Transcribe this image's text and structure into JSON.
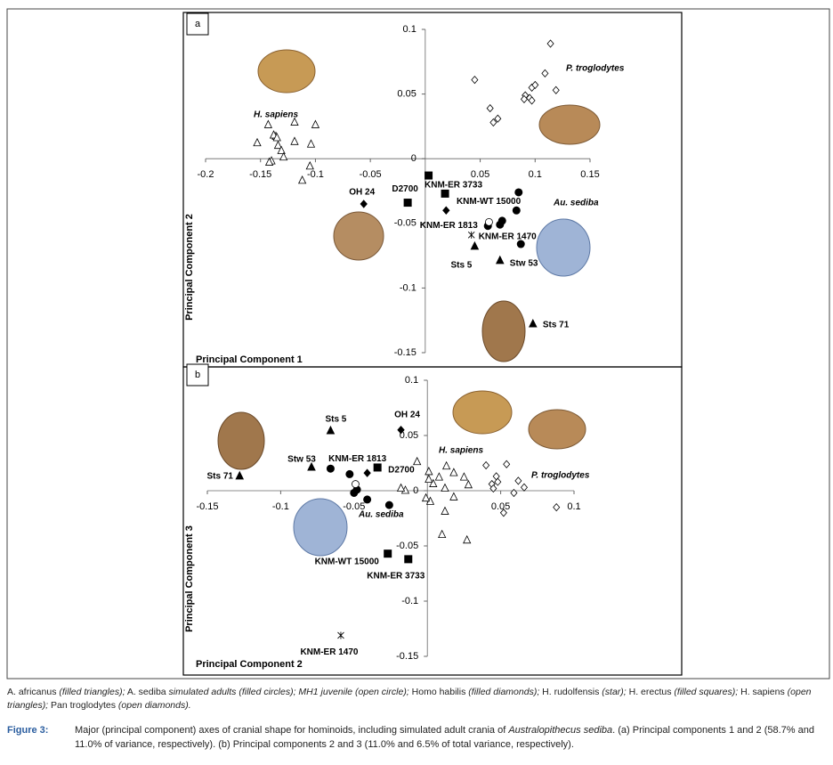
{
  "chart_data": [
    {
      "type": "scatter",
      "panel": "a",
      "xlabel": "Principal Component 1",
      "ylabel": "Principal Component 2",
      "xlim": [
        -0.2,
        0.15
      ],
      "ylim": [
        -0.15,
        0.1
      ],
      "xticks": [
        -0.2,
        -0.15,
        -0.1,
        -0.05,
        0.05,
        0.1,
        0.15
      ],
      "yticks": [
        -0.15,
        -0.1,
        -0.05,
        0,
        0.05,
        0.1
      ],
      "annotations": [
        "H. sapiens",
        "P. troglodytes",
        "Au. sediba"
      ],
      "series": [
        {
          "marker": "filled-triangle",
          "color": "#000000",
          "x": [
            0.045,
            0.068,
            0.098
          ],
          "values": [
            -0.068,
            -0.079,
            -0.128
          ],
          "labels": [
            "Sts 5",
            "Stw 53",
            "Sts 71"
          ]
        },
        {
          "marker": "filled-circle",
          "color": "#000000",
          "x": [
            0.085,
            0.083,
            0.07,
            0.068,
            0.087,
            0.057
          ],
          "values": [
            -0.026,
            -0.04,
            -0.048,
            -0.051,
            -0.066,
            -0.052
          ]
        },
        {
          "marker": "open-circle",
          "color": "#000000",
          "x": [
            0.058
          ],
          "values": [
            -0.049
          ]
        },
        {
          "marker": "filled-diamond",
          "color": "#000000",
          "x": [
            -0.056,
            0.019
          ],
          "values": [
            -0.035,
            -0.04
          ],
          "labels": [
            "OH 24",
            "KNM-ER 1813"
          ]
        },
        {
          "marker": "star",
          "color": "#000000",
          "x": [
            0.042
          ],
          "values": [
            -0.059
          ],
          "labels": [
            "KNM-ER 1470"
          ]
        },
        {
          "marker": "filled-square",
          "color": "#000000",
          "x": [
            -0.016,
            0.003,
            0.018
          ],
          "values": [
            -0.034,
            -0.013,
            -0.027
          ],
          "labels": [
            "D2700",
            "KNM-ER 3733",
            "KNM-WT 15000"
          ]
        },
        {
          "marker": "open-triangle",
          "color": "#000000",
          "x": [
            -0.153,
            -0.143,
            -0.136,
            -0.119,
            -0.1,
            -0.104,
            -0.119,
            -0.138,
            -0.135,
            -0.134,
            -0.131,
            -0.129,
            -0.14,
            -0.142,
            -0.105,
            -0.112
          ],
          "values": [
            0.012,
            0.026,
            0.017,
            0.028,
            0.026,
            0.011,
            0.013,
            0.018,
            0.016,
            0.01,
            0.006,
            0.001,
            -0.002,
            -0.003,
            -0.006,
            -0.017
          ]
        },
        {
          "marker": "open-diamond",
          "color": "#000000",
          "x": [
            0.045,
            0.114,
            0.109,
            0.119,
            0.059,
            0.062,
            0.066,
            0.091,
            0.095,
            0.097,
            0.1,
            0.097,
            0.09
          ],
          "values": [
            0.061,
            0.089,
            0.066,
            0.053,
            0.039,
            0.028,
            0.031,
            0.049,
            0.047,
            0.055,
            0.057,
            0.045,
            0.046
          ]
        }
      ]
    },
    {
      "type": "scatter",
      "panel": "b",
      "xlabel": "Principal Component 2",
      "ylabel": "Principal Component 3",
      "xlim": [
        -0.15,
        0.1
      ],
      "ylim": [
        -0.15,
        0.1
      ],
      "xticks": [
        -0.15,
        -0.1,
        -0.05,
        0.05,
        0.1
      ],
      "yticks": [
        -0.15,
        -0.1,
        -0.05,
        0,
        0.05,
        0.1
      ],
      "annotations": [
        "H. sapiens",
        "P. troglodytes",
        "Au. sediba"
      ],
      "series": [
        {
          "marker": "filled-triangle",
          "color": "#000000",
          "x": [
            -0.066,
            -0.079,
            -0.128
          ],
          "values": [
            0.054,
            0.021,
            0.013
          ],
          "labels": [
            "Sts 5",
            "Stw 53",
            "Sts 71"
          ]
        },
        {
          "marker": "filled-circle",
          "color": "#000000",
          "x": [
            -0.066,
            -0.053,
            -0.048,
            -0.05,
            -0.041,
            -0.026
          ],
          "values": [
            0.02,
            0.015,
            0.001,
            -0.002,
            -0.008,
            -0.013
          ]
        },
        {
          "marker": "open-circle",
          "color": "#000000",
          "x": [
            -0.049
          ],
          "values": [
            0.006
          ]
        },
        {
          "marker": "filled-diamond",
          "color": "#000000",
          "x": [
            -0.018,
            -0.041
          ],
          "values": [
            0.055,
            0.016
          ],
          "labels": [
            "OH 24",
            "KNM-ER 1813"
          ]
        },
        {
          "marker": "star",
          "color": "#000000",
          "x": [
            -0.059
          ],
          "values": [
            -0.131
          ],
          "labels": [
            "KNM-ER 1470"
          ]
        },
        {
          "marker": "filled-square",
          "color": "#000000",
          "x": [
            -0.034,
            -0.027,
            -0.013
          ],
          "values": [
            0.021,
            -0.057,
            -0.062
          ],
          "labels": [
            "D2700",
            "KNM-WT 15000",
            "KNM-ER 3733"
          ]
        },
        {
          "marker": "open-triangle",
          "color": "#000000",
          "x": [
            -0.007,
            0.001,
            0.004,
            0.008,
            0.013,
            0.018,
            0.012,
            0.018,
            0.025,
            0.028,
            0.012,
            0.002,
            0.01,
            0.027,
            -0.015,
            -0.018,
            -0.001,
            0.001
          ],
          "values": [
            0.026,
            0.017,
            0.006,
            0.012,
            0.022,
            0.016,
            0.002,
            -0.006,
            0.012,
            0.005,
            -0.019,
            -0.01,
            -0.04,
            -0.045,
            0,
            0.002,
            -0.007,
            0.01
          ]
        },
        {
          "marker": "open-diamond",
          "color": "#000000",
          "x": [
            0.04,
            0.054,
            0.047,
            0.048,
            0.044,
            0.045,
            0.059,
            0.062,
            0.066,
            0.052,
            0.088
          ],
          "values": [
            0.023,
            0.024,
            0.013,
            0.008,
            0.006,
            0.002,
            -0.002,
            0.009,
            0.003,
            -0.02,
            -0.015
          ]
        }
      ]
    }
  ],
  "legend_note": [
    "A. africanus",
    "(filled triangles);",
    "A. sediba",
    "simulated adults (filled circles); MH1 juvenile (open circle);",
    "Homo habilis",
    "(filled diamonds);",
    "H. rudolfensis",
    "(star);",
    "H. erectus",
    "(filled squares);",
    "H. sapiens",
    "(open triangles);",
    "Pan troglodytes",
    "(open diamonds)."
  ],
  "caption": {
    "label": "Figure 3:",
    "text": [
      "Major (principal component) axes of cranial shape for hominoids, including simulated adult crania of",
      "Australopithecus sediba",
      ". (a) Principal components 1 and 2 (58.7% and 11.0% of variance, respectively). (b) Principal components 2 and 3 (11.0% and 6.5% of total variance, respectively)."
    ]
  }
}
